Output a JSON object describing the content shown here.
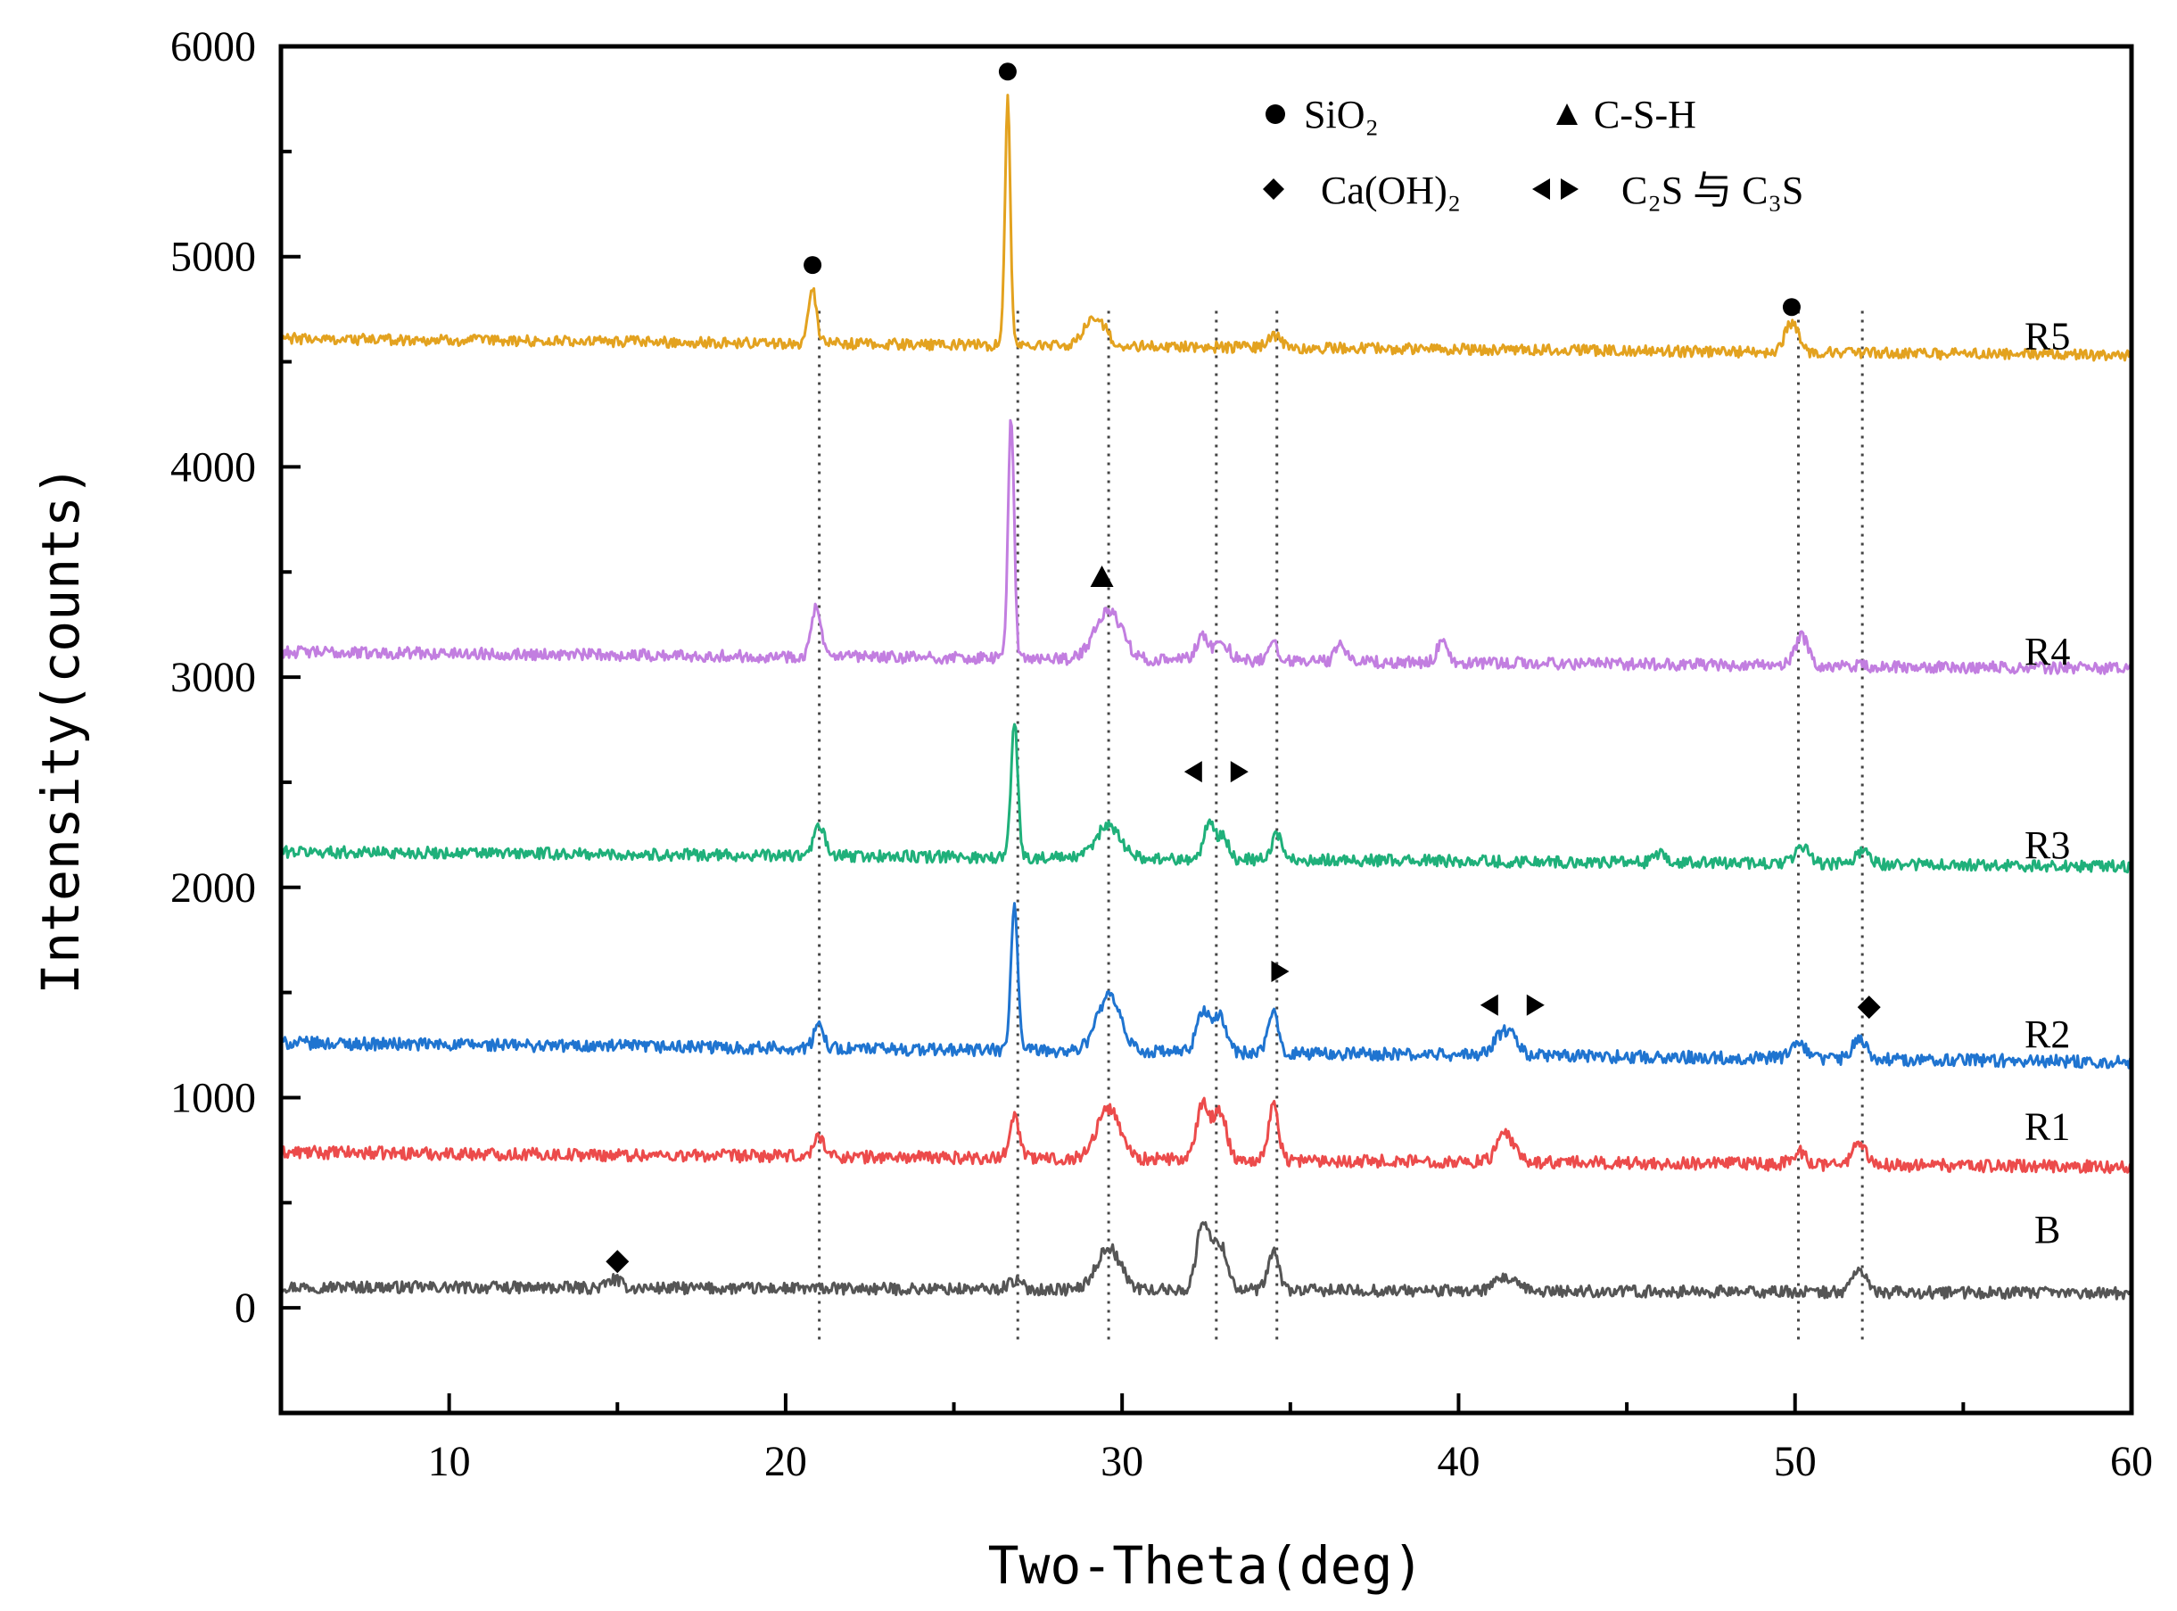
{
  "chart_data": {
    "type": "line",
    "title": "",
    "xlabel": "Two-Theta(deg)",
    "ylabel": "Intensity(counts)",
    "xlim": [
      5,
      60
    ],
    "ylim": [
      -500,
      6000
    ],
    "xticks": [
      10,
      20,
      30,
      40,
      50,
      60
    ],
    "yticks": [
      0,
      1000,
      2000,
      3000,
      4000,
      5000,
      6000
    ],
    "grid": false,
    "legend": {
      "placement": "top-right",
      "entries": [
        {
          "marker": "circle",
          "label": "SiO₂"
        },
        {
          "marker": "triangle",
          "label": "C-S-H"
        },
        {
          "marker": "diamond",
          "label": "Ca(OH)₂"
        },
        {
          "marker": "double-triangle",
          "label": "C₂S 与 C₃S"
        }
      ]
    },
    "reference_lines_x": [
      21.0,
      26.9,
      29.6,
      32.8,
      34.6,
      50.1,
      52.0
    ],
    "series": [
      {
        "name": "B",
        "color": "#555555",
        "baseline": 100,
        "end": 70,
        "noise": 28,
        "label_at": [
          57.5,
          310
        ],
        "peaks": [
          [
            29.6,
            200,
            0.35
          ],
          [
            32.4,
            320,
            0.18
          ],
          [
            32.9,
            220,
            0.22
          ],
          [
            34.5,
            180,
            0.16
          ],
          [
            41.4,
            60,
            0.3
          ],
          [
            51.9,
            110,
            0.2
          ],
          [
            26.8,
            40,
            0.2
          ],
          [
            14.9,
            40,
            0.2
          ]
        ]
      },
      {
        "name": "R1",
        "color": "#ec4b4b",
        "baseline": 740,
        "end": 670,
        "noise": 30,
        "label_at": [
          57.5,
          800
        ],
        "peaks": [
          [
            21.0,
            100,
            0.15
          ],
          [
            26.8,
            200,
            0.15
          ],
          [
            29.6,
            240,
            0.35
          ],
          [
            32.4,
            260,
            0.18
          ],
          [
            32.9,
            230,
            0.2
          ],
          [
            34.5,
            260,
            0.15
          ],
          [
            41.4,
            130,
            0.25
          ],
          [
            50.1,
            60,
            0.2
          ],
          [
            51.9,
            100,
            0.2
          ]
        ]
      },
      {
        "name": "R2",
        "color": "#1f74d0",
        "baseline": 1260,
        "end": 1170,
        "noise": 30,
        "label_at": [
          57.5,
          1240
        ],
        "peaks": [
          [
            21.0,
            110,
            0.15
          ],
          [
            26.8,
            700,
            0.1
          ],
          [
            29.6,
            260,
            0.35
          ],
          [
            32.4,
            200,
            0.18
          ],
          [
            32.9,
            170,
            0.2
          ],
          [
            34.5,
            190,
            0.15
          ],
          [
            41.4,
            120,
            0.3
          ],
          [
            50.1,
            80,
            0.2
          ],
          [
            51.9,
            100,
            0.2
          ]
        ]
      },
      {
        "name": "R3",
        "color": "#1fb07a",
        "baseline": 2170,
        "end": 2100,
        "noise": 28,
        "label_at": [
          57.5,
          2140
        ],
        "peaks": [
          [
            21.0,
            150,
            0.15
          ],
          [
            26.8,
            650,
            0.1
          ],
          [
            29.6,
            160,
            0.35
          ],
          [
            32.6,
            180,
            0.15
          ],
          [
            33.0,
            110,
            0.15
          ],
          [
            34.6,
            120,
            0.15
          ],
          [
            46.0,
            40,
            0.15
          ],
          [
            50.2,
            80,
            0.2
          ],
          [
            52.0,
            60,
            0.2
          ]
        ]
      },
      {
        "name": "R4",
        "color": "#c27ee0",
        "baseline": 3120,
        "end": 3040,
        "noise": 28,
        "label_at": [
          57.5,
          3060
        ],
        "peaks": [
          [
            20.9,
            230,
            0.14
          ],
          [
            26.7,
            1150,
            0.09
          ],
          [
            29.6,
            230,
            0.4
          ],
          [
            32.4,
            110,
            0.2
          ],
          [
            33.0,
            80,
            0.2
          ],
          [
            34.5,
            80,
            0.15
          ],
          [
            36.5,
            80,
            0.15
          ],
          [
            39.5,
            90,
            0.15
          ],
          [
            50.2,
            140,
            0.2
          ]
        ]
      },
      {
        "name": "R5",
        "color": "#e3a21f",
        "baseline": 4610,
        "end": 4530,
        "noise": 26,
        "label_at": [
          57.5,
          4560
        ],
        "peaks": [
          [
            20.8,
            260,
            0.12
          ],
          [
            26.6,
            1180,
            0.08
          ],
          [
            29.2,
            140,
            0.3
          ],
          [
            34.5,
            60,
            0.2
          ],
          [
            49.9,
            140,
            0.2
          ]
        ]
      }
    ],
    "annotations": [
      {
        "marker": "circle",
        "x": 20.8,
        "y": 4960
      },
      {
        "marker": "circle",
        "x": 26.6,
        "y": 5880
      },
      {
        "marker": "circle",
        "x": 49.9,
        "y": 4760
      },
      {
        "marker": "triangle",
        "x": 29.4,
        "y": 3480
      },
      {
        "marker": "double-triangle",
        "x": 32.8,
        "y": 2550
      },
      {
        "marker": "right-triangle",
        "x": 34.7,
        "y": 1600
      },
      {
        "marker": "double-triangle",
        "x": 41.6,
        "y": 1440
      },
      {
        "marker": "diamond",
        "x": 52.2,
        "y": 1430
      },
      {
        "marker": "diamond",
        "x": 15.0,
        "y": 220
      }
    ]
  }
}
